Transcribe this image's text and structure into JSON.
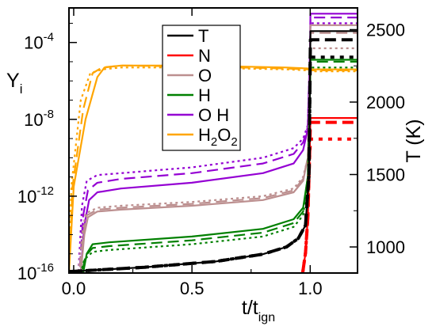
{
  "chart_data": {
    "type": "line",
    "title": "",
    "xlabel": {
      "main": "t/t",
      "sub": "ign"
    },
    "ylabel_left": {
      "main": "Y",
      "sub": "i"
    },
    "ylabel_right": "T (K)",
    "xlim": [
      -0.02,
      1.2
    ],
    "ylim_log10": [
      -16,
      -2.2
    ],
    "ylim_right": [
      820,
      2650
    ],
    "yscale": "log",
    "grid": false,
    "legend_position": "top-center",
    "x_ticks": [
      {
        "v": 0.0,
        "label": "0.0"
      },
      {
        "v": 0.5,
        "label": "0.5"
      },
      {
        "v": 1.0,
        "label": "1.0"
      }
    ],
    "y_ticks_left": [
      {
        "exp": -16,
        "base": "10",
        "e": "-16"
      },
      {
        "exp": -12,
        "base": "10",
        "e": "-12"
      },
      {
        "exp": -8,
        "base": "10",
        "e": "-8"
      },
      {
        "exp": -4,
        "base": "10",
        "e": "-4"
      }
    ],
    "y_ticks_right": [
      {
        "v": 1000,
        "label": "1000"
      },
      {
        "v": 1500,
        "label": "1500"
      },
      {
        "v": 2000,
        "label": "2000"
      },
      {
        "v": 2500,
        "label": "2500"
      }
    ],
    "line_styles_note": "solid, dashed and dotted variants per species",
    "series": [
      {
        "name": "T",
        "axis": "right",
        "color": "#000000",
        "variants": {
          "solid": [
            [
              -0.02,
              830
            ],
            [
              0.3,
              860
            ],
            [
              0.6,
              900
            ],
            [
              0.8,
              950
            ],
            [
              0.9,
              1000
            ],
            [
              0.95,
              1060
            ],
            [
              0.98,
              1150
            ],
            [
              0.995,
              1500
            ],
            [
              1.0,
              2300
            ],
            [
              1.001,
              2490
            ],
            [
              1.2,
              2490
            ]
          ],
          "dashed": [
            [
              -0.02,
              830
            ],
            [
              0.3,
              860
            ],
            [
              0.6,
              900
            ],
            [
              0.8,
              950
            ],
            [
              0.9,
              1000
            ],
            [
              0.95,
              1060
            ],
            [
              0.98,
              1150
            ],
            [
              0.995,
              1500
            ],
            [
              1.0,
              2300
            ],
            [
              1.001,
              2430
            ],
            [
              1.2,
              2430
            ]
          ],
          "dotted": [
            [
              -0.02,
              830
            ],
            [
              0.3,
              860
            ],
            [
              0.6,
              900
            ],
            [
              0.8,
              950
            ],
            [
              0.9,
              1000
            ],
            [
              0.95,
              1060
            ],
            [
              0.98,
              1150
            ],
            [
              0.995,
              1500
            ],
            [
              1.0,
              2300
            ],
            [
              1.001,
              2310
            ],
            [
              1.2,
              2310
            ]
          ]
        }
      },
      {
        "name": "N",
        "axis": "right",
        "color": "#ff0000",
        "variants": {
          "solid": [
            [
              0.968,
              820
            ],
            [
              0.98,
              960
            ],
            [
              0.99,
              1200
            ],
            [
              0.997,
              1600
            ],
            [
              1.0,
              1800
            ],
            [
              1.001,
              1890
            ],
            [
              1.2,
              1890
            ]
          ],
          "dashed": [
            [
              0.968,
              820
            ],
            [
              0.98,
              960
            ],
            [
              0.99,
              1200
            ],
            [
              0.997,
              1600
            ],
            [
              1.0,
              1800
            ],
            [
              1.001,
              1860
            ],
            [
              1.2,
              1860
            ]
          ],
          "dotted": [
            [
              0.968,
              820
            ],
            [
              0.98,
              960
            ],
            [
              0.99,
              1200
            ],
            [
              0.997,
              1600
            ],
            [
              1.0,
              1700
            ],
            [
              1.001,
              1745
            ],
            [
              1.2,
              1745
            ]
          ]
        }
      },
      {
        "name": "O",
        "axis": "left",
        "color": "#bc8f8f",
        "variants": {
          "solid": [
            [
              -0.02,
              -16
            ],
            [
              0.03,
              -16
            ],
            [
              0.045,
              -14
            ],
            [
              0.06,
              -13.1
            ],
            [
              0.1,
              -12.8
            ],
            [
              0.2,
              -12.7
            ],
            [
              0.5,
              -12.5
            ],
            [
              0.8,
              -12.2
            ],
            [
              0.93,
              -11.8
            ],
            [
              0.97,
              -11.2
            ],
            [
              0.99,
              -10
            ],
            [
              1.0,
              -5
            ],
            [
              1.001,
              -3.1
            ],
            [
              1.2,
              -3.1
            ]
          ],
          "dashed": [
            [
              -0.02,
              -16
            ],
            [
              0.025,
              -16
            ],
            [
              0.04,
              -14
            ],
            [
              0.055,
              -13.0
            ],
            [
              0.1,
              -12.7
            ],
            [
              0.2,
              -12.6
            ],
            [
              0.5,
              -12.4
            ],
            [
              0.8,
              -12.1
            ],
            [
              0.93,
              -11.7
            ],
            [
              0.97,
              -11.1
            ],
            [
              0.99,
              -10
            ],
            [
              1.0,
              -5
            ],
            [
              1.001,
              -3.5
            ],
            [
              1.2,
              -3.5
            ]
          ],
          "dotted": [
            [
              -0.02,
              -16
            ],
            [
              0.02,
              -16
            ],
            [
              0.035,
              -14
            ],
            [
              0.05,
              -12.9
            ],
            [
              0.1,
              -12.6
            ],
            [
              0.2,
              -12.5
            ],
            [
              0.5,
              -12.3
            ],
            [
              0.8,
              -12.0
            ],
            [
              0.93,
              -11.6
            ],
            [
              0.97,
              -11.0
            ],
            [
              0.99,
              -10
            ],
            [
              1.0,
              -5
            ],
            [
              1.001,
              -4.3
            ],
            [
              1.2,
              -4.3
            ]
          ]
        }
      },
      {
        "name": "H",
        "axis": "left",
        "color": "#008000",
        "variants": {
          "solid": [
            [
              -0.02,
              -16
            ],
            [
              0.04,
              -16
            ],
            [
              0.055,
              -15
            ],
            [
              0.08,
              -14.5
            ],
            [
              0.15,
              -14.4
            ],
            [
              0.5,
              -14.1
            ],
            [
              0.8,
              -13.7
            ],
            [
              0.93,
              -13.2
            ],
            [
              0.97,
              -12.6
            ],
            [
              0.99,
              -11
            ],
            [
              1.0,
              -6
            ],
            [
              1.001,
              -4.9
            ],
            [
              1.2,
              -4.9
            ]
          ],
          "dashed": [
            [
              -0.02,
              -16
            ],
            [
              0.035,
              -16
            ],
            [
              0.05,
              -15.1
            ],
            [
              0.08,
              -14.7
            ],
            [
              0.15,
              -14.6
            ],
            [
              0.5,
              -14.3
            ],
            [
              0.8,
              -13.9
            ],
            [
              0.93,
              -13.4
            ],
            [
              0.97,
              -12.8
            ],
            [
              0.99,
              -11
            ],
            [
              1.0,
              -6
            ],
            [
              1.001,
              -5.0
            ],
            [
              1.2,
              -5.0
            ]
          ],
          "dotted": [
            [
              -0.02,
              -16
            ],
            [
              0.03,
              -16
            ],
            [
              0.045,
              -15.3
            ],
            [
              0.08,
              -14.9
            ],
            [
              0.15,
              -14.8
            ],
            [
              0.5,
              -14.5
            ],
            [
              0.8,
              -14.1
            ],
            [
              0.93,
              -13.6
            ],
            [
              0.97,
              -13.0
            ],
            [
              0.99,
              -11.2
            ],
            [
              1.0,
              -6
            ],
            [
              1.001,
              -5.3
            ],
            [
              1.2,
              -5.3
            ]
          ]
        }
      },
      {
        "name": "OH",
        "axis": "left",
        "color": "#9400d3",
        "variants": {
          "solid": [
            [
              -0.02,
              -16
            ],
            [
              0.03,
              -16
            ],
            [
              0.045,
              -13.5
            ],
            [
              0.065,
              -12.2
            ],
            [
              0.1,
              -11.8
            ],
            [
              0.2,
              -11.6
            ],
            [
              0.5,
              -11.3
            ],
            [
              0.8,
              -10.8
            ],
            [
              0.93,
              -10.3
            ],
            [
              0.97,
              -9.6
            ],
            [
              0.99,
              -8.5
            ],
            [
              1.0,
              -4
            ],
            [
              1.001,
              -2.5
            ],
            [
              1.2,
              -2.5
            ]
          ],
          "dashed": [
            [
              -0.02,
              -16
            ],
            [
              0.025,
              -16
            ],
            [
              0.04,
              -13
            ],
            [
              0.06,
              -11.7
            ],
            [
              0.1,
              -11.3
            ],
            [
              0.2,
              -11.1
            ],
            [
              0.5,
              -10.8
            ],
            [
              0.8,
              -10.3
            ],
            [
              0.93,
              -9.8
            ],
            [
              0.97,
              -9.2
            ],
            [
              0.99,
              -8.4
            ],
            [
              1.0,
              -4
            ],
            [
              1.001,
              -2.7
            ],
            [
              1.2,
              -2.7
            ]
          ],
          "dotted": [
            [
              -0.02,
              -16
            ],
            [
              0.02,
              -16
            ],
            [
              0.035,
              -12.5
            ],
            [
              0.055,
              -11.2
            ],
            [
              0.1,
              -10.9
            ],
            [
              0.2,
              -10.8
            ],
            [
              0.5,
              -10.5
            ],
            [
              0.8,
              -10.0
            ],
            [
              0.93,
              -9.5
            ],
            [
              0.97,
              -9.0
            ],
            [
              0.99,
              -8.3
            ],
            [
              1.0,
              -4
            ],
            [
              1.001,
              -3.0
            ],
            [
              1.2,
              -3.0
            ]
          ]
        }
      },
      {
        "name": "H2O2",
        "label_main": "H",
        "label_sub1": "2",
        "label_mid": "O",
        "label_sub2": "2",
        "axis": "left",
        "color": "#ffa500",
        "variants": {
          "solid": [
            [
              -0.02,
              -16
            ],
            [
              0.0,
              -11.5
            ],
            [
              0.05,
              -8
            ],
            [
              0.1,
              -5.8
            ],
            [
              0.13,
              -5.3
            ],
            [
              0.2,
              -5.2
            ],
            [
              0.5,
              -5.2
            ],
            [
              0.9,
              -5.3
            ],
            [
              0.99,
              -5.35
            ],
            [
              1.001,
              -5.4
            ],
            [
              1.2,
              -5.4
            ]
          ],
          "dashed": [
            [
              -0.02,
              -16
            ],
            [
              -0.005,
              -11.5
            ],
            [
              0.04,
              -7.5
            ],
            [
              0.08,
              -5.6
            ],
            [
              0.12,
              -5.3
            ],
            [
              0.2,
              -5.2
            ],
            [
              0.5,
              -5.25
            ],
            [
              0.9,
              -5.35
            ],
            [
              0.99,
              -5.4
            ],
            [
              1.001,
              -5.45
            ],
            [
              1.2,
              -5.45
            ]
          ],
          "dotted": [
            [
              -0.02,
              -16
            ],
            [
              -0.01,
              -11.5
            ],
            [
              0.03,
              -7
            ],
            [
              0.07,
              -5.6
            ],
            [
              0.12,
              -5.4
            ],
            [
              0.2,
              -5.3
            ],
            [
              0.5,
              -5.3
            ],
            [
              0.9,
              -5.4
            ],
            [
              0.99,
              -5.45
            ],
            [
              1.001,
              -5.5
            ],
            [
              1.2,
              -5.5
            ]
          ]
        }
      }
    ]
  }
}
